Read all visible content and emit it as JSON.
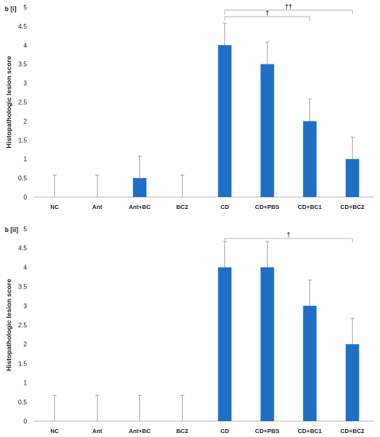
{
  "chart_data": [
    {
      "type": "bar",
      "panel_label": "b [i]",
      "ylabel": "Histopathologic lesion score",
      "ylim": [
        0,
        5
      ],
      "yticks": [
        0,
        0.5,
        1,
        1.5,
        2,
        2.5,
        3,
        3.5,
        4,
        4.5,
        5
      ],
      "grid": false,
      "colors": {
        "bar": "#1f6fc6",
        "error_bar": "#999999"
      },
      "categories": [
        "NC",
        "Ant",
        "Ant+BC",
        "BC2",
        "CD",
        "CD+PBS",
        "CD+BC1",
        "CD+BC2"
      ],
      "values": [
        0,
        0,
        0.5,
        0,
        4,
        3.5,
        2,
        1
      ],
      "errors": [
        0.58,
        0.58,
        0.58,
        0.58,
        0.58,
        0.58,
        0.58,
        0.58
      ],
      "annotations": [
        {
          "from": "CD",
          "to": "CD+BC1",
          "y": 4.75,
          "label": "†"
        },
        {
          "from": "CD",
          "to": "CD+BC2",
          "y": 4.92,
          "label": "††"
        }
      ]
    },
    {
      "type": "bar",
      "panel_label": "b [ii]",
      "ylabel": "Histopathologic lesion score",
      "ylim": [
        0,
        5
      ],
      "yticks": [
        0,
        0.5,
        1,
        1.5,
        2,
        2.5,
        3,
        3.5,
        4,
        4.5,
        5
      ],
      "grid": false,
      "colors": {
        "bar": "#1f6fc6",
        "error_bar": "#999999"
      },
      "categories": [
        "NC",
        "Ant",
        "Ant+BC",
        "BC2",
        "CD",
        "CD+PBS",
        "CD+BC1",
        "CD+BC2"
      ],
      "values": [
        0,
        0,
        0,
        0,
        4,
        4,
        3,
        2
      ],
      "errors": [
        0.67,
        0.67,
        0.67,
        0.67,
        0.67,
        0.67,
        0.67,
        0.67
      ],
      "annotations": [
        {
          "from": "CD",
          "to": "CD+BC2",
          "y": 4.75,
          "label": "†"
        }
      ]
    }
  ]
}
